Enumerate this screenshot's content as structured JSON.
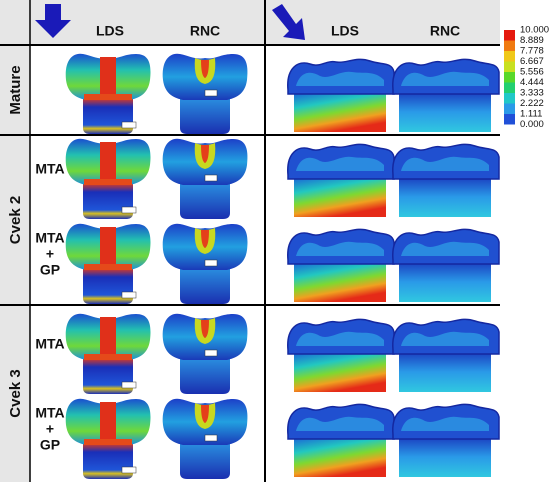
{
  "headers": {
    "left": [
      "LDS",
      "RNC"
    ],
    "right": [
      "LDS",
      "RNC"
    ]
  },
  "groups": [
    {
      "label": "Mature",
      "rows": []
    },
    {
      "label": "Cvek 2",
      "rows": [
        [
          "MTA"
        ],
        [
          "MTA",
          "+",
          "GP"
        ]
      ]
    },
    {
      "label": "Cvek 3",
      "rows": [
        [
          "MTA"
        ],
        [
          "MTA",
          "+",
          "GP"
        ]
      ]
    }
  ],
  "color_scale": {
    "labels": [
      "10.000",
      "8.889",
      "7.778",
      "6.667",
      "5.556",
      "4.444",
      "3.333",
      "2.222",
      "1.111",
      "0.000"
    ]
  }
}
